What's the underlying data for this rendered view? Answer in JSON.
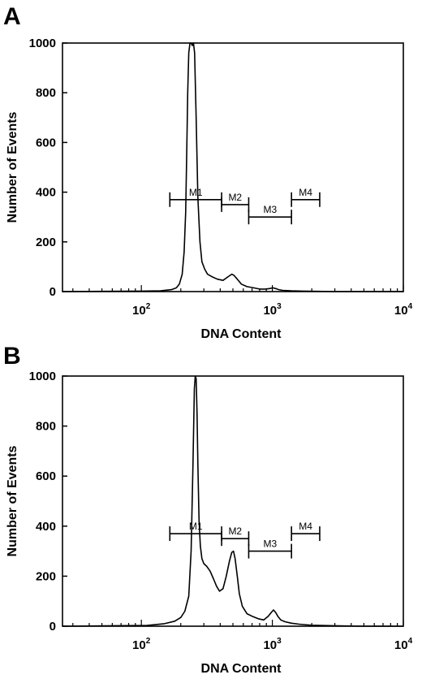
{
  "chart_data": [
    {
      "type": "line",
      "panel": "A",
      "xlabel": "DNA Content",
      "ylabel": "Number of Events",
      "xscale": "log",
      "xlim": [
        25,
        10000
      ],
      "ylim": [
        0,
        1000
      ],
      "yticks": [
        0,
        200,
        400,
        600,
        800,
        1000
      ],
      "xticks": [
        {
          "base": "10",
          "exp": "2",
          "value": 100
        },
        {
          "base": "10",
          "exp": "3",
          "value": 1000
        },
        {
          "base": "10",
          "exp": "4",
          "value": 10000
        }
      ],
      "markers": [
        {
          "label": "M1",
          "x_start": 165,
          "x_end": 410,
          "level": 370
        },
        {
          "label": "M2",
          "x_start": 410,
          "x_end": 660,
          "level": 350
        },
        {
          "label": "M3",
          "x_start": 660,
          "x_end": 1400,
          "level": 300
        },
        {
          "label": "M4",
          "x_start": 1400,
          "x_end": 2300,
          "level": 370
        }
      ],
      "series": [
        {
          "x": [
            25,
            100,
            140,
            170,
            185,
            195,
            205,
            212,
            218,
            222,
            226,
            230,
            235,
            240,
            245,
            250,
            255,
            262,
            270,
            280,
            290,
            305,
            320,
            345,
            380,
            420,
            460,
            490,
            510,
            540,
            580,
            640,
            720,
            800,
            880,
            950,
            1010,
            1060,
            1120,
            1200,
            1400,
            1700,
            2200,
            3000,
            5000,
            10000
          ],
          "y": [
            0,
            2,
            3,
            8,
            15,
            30,
            70,
            160,
            320,
            560,
            800,
            960,
            1000,
            1000,
            990,
            1000,
            960,
            700,
            380,
            200,
            120,
            90,
            70,
            60,
            50,
            45,
            60,
            70,
            65,
            50,
            30,
            20,
            15,
            10,
            10,
            12,
            15,
            12,
            8,
            5,
            3,
            2,
            1,
            0,
            0,
            0
          ]
        }
      ]
    },
    {
      "type": "line",
      "panel": "B",
      "xlabel": "DNA Content",
      "ylabel": "Number of Events",
      "xscale": "log",
      "xlim": [
        25,
        10000
      ],
      "ylim": [
        0,
        1000
      ],
      "yticks": [
        0,
        200,
        400,
        600,
        800,
        1000
      ],
      "xticks": [
        {
          "base": "10",
          "exp": "2",
          "value": 100
        },
        {
          "base": "10",
          "exp": "3",
          "value": 1000
        },
        {
          "base": "10",
          "exp": "4",
          "value": 10000
        }
      ],
      "markers": [
        {
          "label": "M1",
          "x_start": 165,
          "x_end": 410,
          "level": 370
        },
        {
          "label": "M2",
          "x_start": 410,
          "x_end": 660,
          "level": 350
        },
        {
          "label": "M3",
          "x_start": 660,
          "x_end": 1400,
          "level": 300
        },
        {
          "label": "M4",
          "x_start": 1400,
          "x_end": 2300,
          "level": 370
        }
      ],
      "series": [
        {
          "x": [
            25,
            110,
            150,
            180,
            200,
            215,
            230,
            240,
            248,
            254,
            258,
            262,
            266,
            270,
            276,
            282,
            290,
            300,
            315,
            335,
            355,
            375,
            395,
            420,
            445,
            470,
            490,
            505,
            520,
            540,
            560,
            590,
            640,
            700,
            780,
            860,
            930,
            980,
            1020,
            1060,
            1100,
            1160,
            1250,
            1400,
            1600,
            2000,
            3000,
            5000,
            10000
          ],
          "y": [
            0,
            3,
            10,
            20,
            35,
            60,
            120,
            300,
            650,
            950,
            1000,
            990,
            850,
            650,
            420,
            320,
            270,
            250,
            240,
            220,
            190,
            160,
            140,
            150,
            200,
            260,
            295,
            300,
            270,
            200,
            130,
            80,
            50,
            40,
            30,
            25,
            40,
            55,
            65,
            55,
            40,
            25,
            18,
            12,
            8,
            4,
            2,
            0,
            0
          ]
        }
      ]
    }
  ]
}
